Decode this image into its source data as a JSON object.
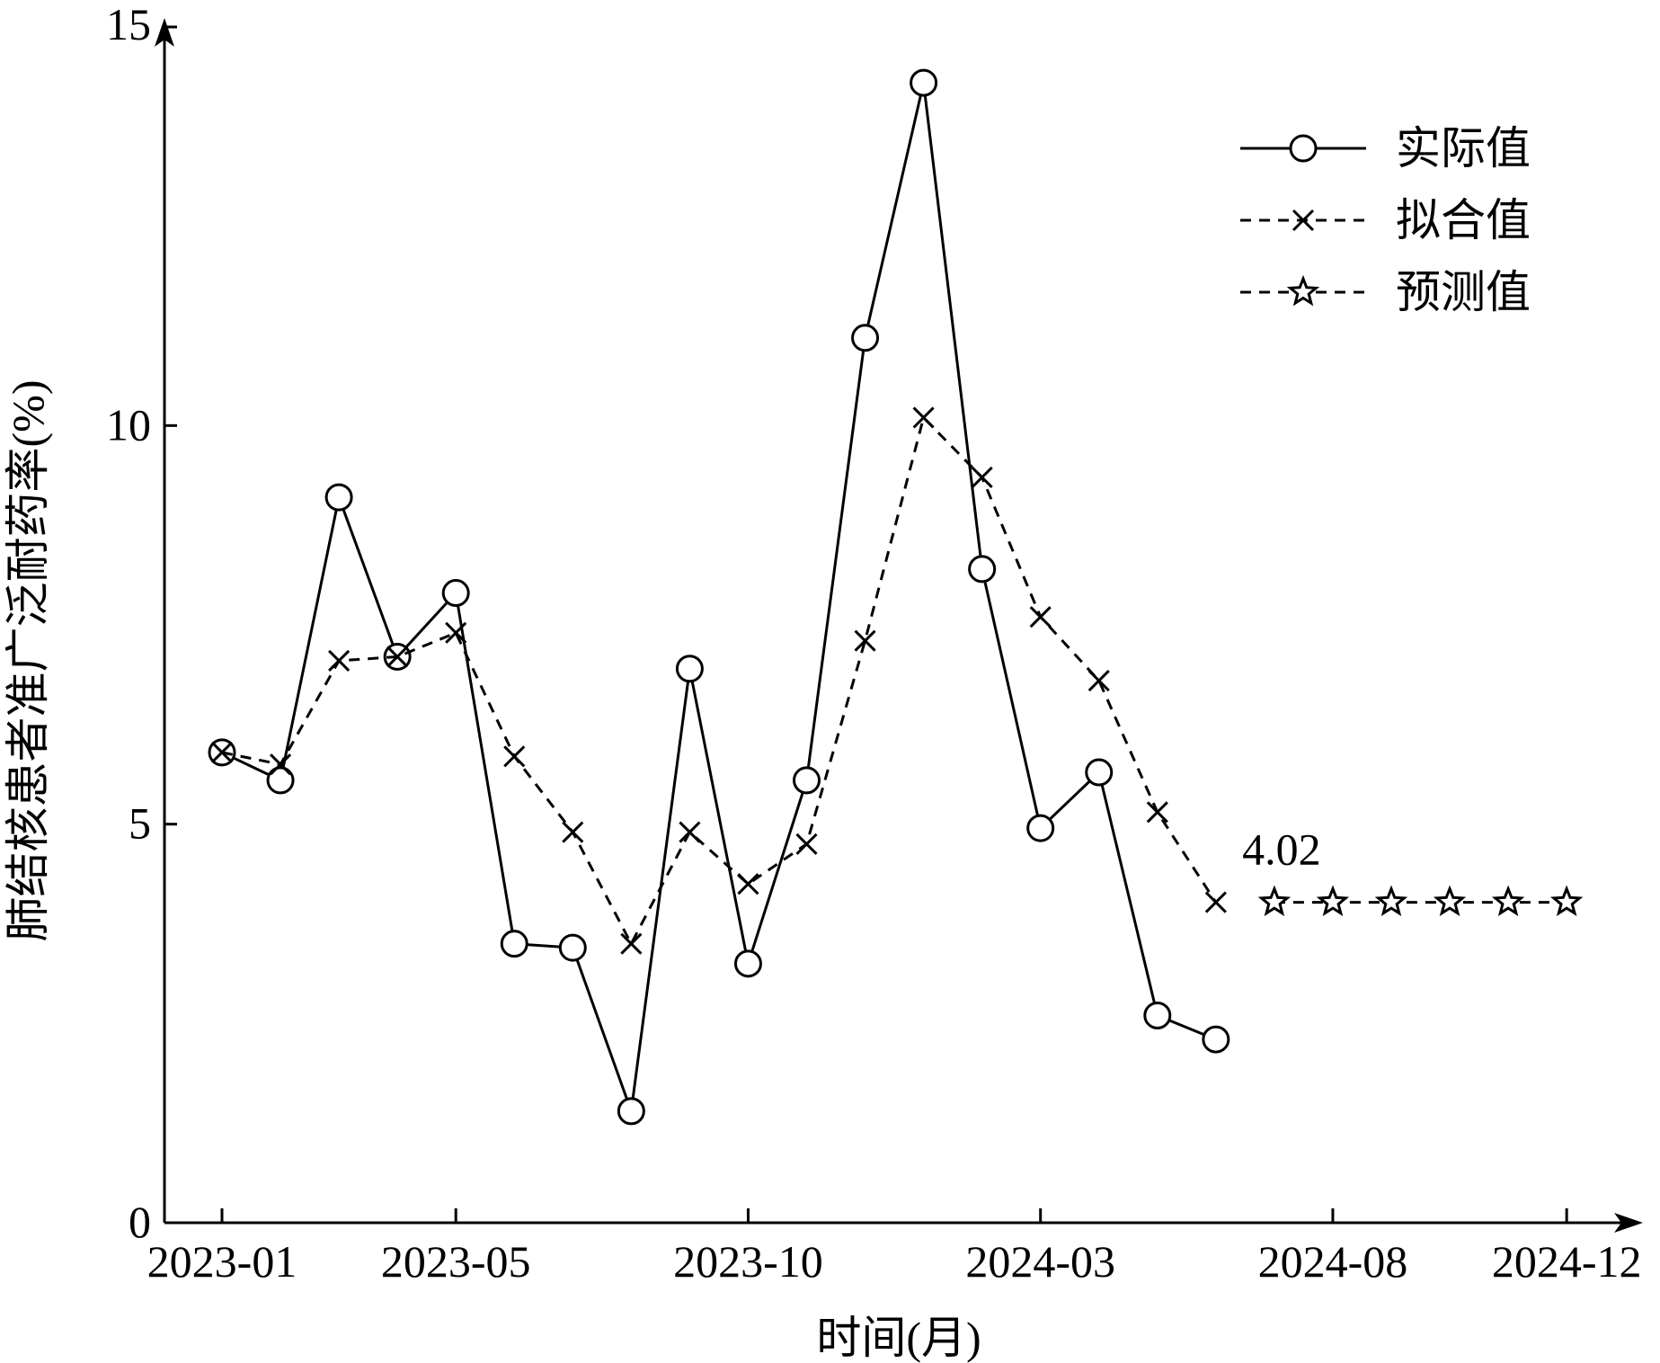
{
  "chart_data": {
    "type": "line",
    "title": "",
    "xlabel": "时间(月)",
    "ylabel": "肺结核患者准广泛耐药率(%)",
    "ylim": [
      0,
      15
    ],
    "yticks": [
      0,
      5,
      10,
      15
    ],
    "xticks": [
      "2023-01",
      "2023-05",
      "2023-10",
      "2024-03",
      "2024-08",
      "2024-12"
    ],
    "grid": false,
    "legend_position": "top-right",
    "months": [
      "2023-01",
      "2023-02",
      "2023-03",
      "2023-04",
      "2023-05",
      "2023-06",
      "2023-07",
      "2023-08",
      "2023-09",
      "2023-10",
      "2023-11",
      "2023-12",
      "2024-01",
      "2024-02",
      "2024-03",
      "2024-04",
      "2024-05",
      "2024-06",
      "2024-07",
      "2024-08",
      "2024-09",
      "2024-10",
      "2024-11",
      "2024-12"
    ],
    "series": [
      {
        "name": "实际值",
        "style": "solid",
        "marker": "circle",
        "x": [
          "2023-01",
          "2023-02",
          "2023-03",
          "2023-04",
          "2023-05",
          "2023-06",
          "2023-07",
          "2023-08",
          "2023-09",
          "2023-10",
          "2023-11",
          "2023-12",
          "2024-01",
          "2024-02",
          "2024-03",
          "2024-04",
          "2024-05",
          "2024-06"
        ],
        "values": [
          5.9,
          5.55,
          9.1,
          7.1,
          7.9,
          3.5,
          3.45,
          1.4,
          6.95,
          3.25,
          5.55,
          11.1,
          14.3,
          8.2,
          4.95,
          5.65,
          2.6,
          2.3
        ]
      },
      {
        "name": "拟合值",
        "style": "dashed",
        "marker": "x",
        "x": [
          "2023-01",
          "2023-02",
          "2023-03",
          "2023-04",
          "2023-05",
          "2023-06",
          "2023-07",
          "2023-08",
          "2023-09",
          "2023-10",
          "2023-11",
          "2023-12",
          "2024-01",
          "2024-02",
          "2024-03",
          "2024-04",
          "2024-05",
          "2024-06"
        ],
        "values": [
          5.9,
          5.75,
          7.05,
          7.1,
          7.4,
          5.85,
          4.9,
          3.5,
          4.9,
          4.25,
          4.75,
          7.3,
          10.1,
          9.35,
          7.6,
          6.8,
          5.15,
          4.02
        ]
      },
      {
        "name": "预测值",
        "style": "dashed",
        "marker": "star",
        "x": [
          "2024-07",
          "2024-08",
          "2024-09",
          "2024-10",
          "2024-11",
          "2024-12"
        ],
        "values": [
          4.02,
          4.02,
          4.02,
          4.02,
          4.02,
          4.02
        ]
      }
    ],
    "annotations": [
      {
        "text": "4.02",
        "x": "2024-07",
        "y": 4.02
      }
    ]
  }
}
